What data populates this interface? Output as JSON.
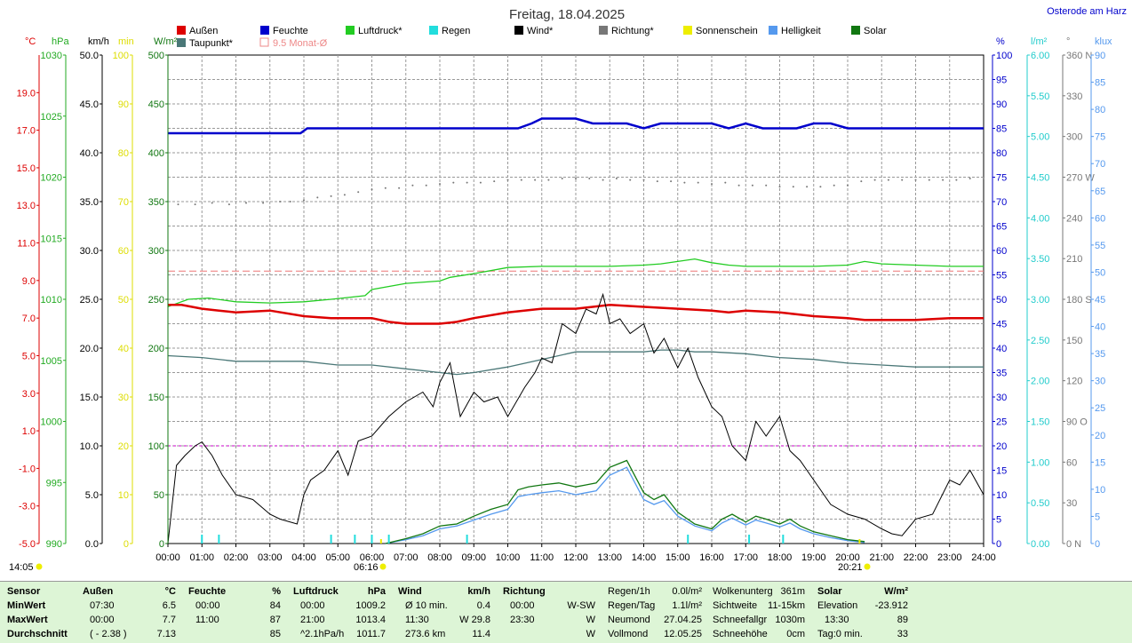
{
  "header": {
    "title": "Freitag, 18.04.2025",
    "location": "Osterode am Harz"
  },
  "legend": [
    {
      "label": "Außen",
      "color": "#dd0000"
    },
    {
      "label": "Feuchte",
      "color": "#0000cc"
    },
    {
      "label": "Luftdruck*",
      "color": "#22cc22"
    },
    {
      "label": "Regen",
      "color": "#22dddd"
    },
    {
      "label": "Wind*",
      "color": "#000000"
    },
    {
      "label": "Richtung*",
      "color": "#777777"
    },
    {
      "label": "Sonnenschein",
      "color": "#eeee00"
    },
    {
      "label": "Helligkeit",
      "color": "#5599ee"
    },
    {
      "label": "Solar",
      "color": "#117711"
    },
    {
      "label": "Taupunkt*",
      "color": "#4a7777"
    },
    {
      "label": "9.5 Monat-Ø",
      "color": "#ee8888",
      "hollow": true
    }
  ],
  "chart_data": {
    "type": "line",
    "x_ticks": [
      "00:00",
      "01:00",
      "02:00",
      "03:00",
      "04:00",
      "05:00",
      "06:00",
      "07:00",
      "08:00",
      "09:00",
      "10:00",
      "11:00",
      "12:00",
      "13:00",
      "14:00",
      "15:00",
      "16:00",
      "17:00",
      "18:00",
      "19:00",
      "20:00",
      "21:00",
      "22:00",
      "23:00",
      "24:00"
    ],
    "xlim": [
      0,
      24
    ],
    "axes_left": [
      {
        "unit": "°C",
        "color": "#dd0000",
        "min": -5,
        "max": 21,
        "ticks": [
          "-5.0",
          "-3.0",
          "-1.0",
          "1.0",
          "3.0",
          "5.0",
          "7.0",
          "9.0",
          "11.0",
          "13.0",
          "15.0",
          "17.0",
          "19.0"
        ]
      },
      {
        "unit": "hPa",
        "color": "#22aa22",
        "min": 990,
        "max": 1030,
        "ticks": [
          "990",
          "995",
          "1000",
          "1005",
          "1010",
          "1015",
          "1020",
          "1025",
          "1030"
        ]
      },
      {
        "unit": "km/h",
        "color": "#000000",
        "min": 0,
        "max": 50,
        "ticks": [
          "0.0",
          "5.0",
          "10.0",
          "15.0",
          "20.0",
          "25.0",
          "30.0",
          "35.0",
          "40.0",
          "45.0",
          "50.0"
        ]
      },
      {
        "unit": "min",
        "color": "#dddd00",
        "min": 0,
        "max": 100,
        "ticks": [
          "0",
          "10",
          "20",
          "30",
          "40",
          "50",
          "60",
          "70",
          "80",
          "90",
          "100"
        ]
      },
      {
        "unit": "W/m²",
        "color": "#117711",
        "min": 0,
        "max": 500,
        "ticks": [
          "0",
          "50",
          "100",
          "150",
          "200",
          "250",
          "300",
          "350",
          "400",
          "450",
          "500"
        ]
      }
    ],
    "axes_right": [
      {
        "unit": "%",
        "color": "#0000cc",
        "min": 0,
        "max": 100,
        "ticks": [
          "0",
          "5",
          "10",
          "15",
          "20",
          "25",
          "30",
          "35",
          "40",
          "45",
          "50",
          "55",
          "60",
          "65",
          "70",
          "75",
          "80",
          "85",
          "90",
          "95",
          "100"
        ]
      },
      {
        "unit": "l/m²",
        "color": "#22cccc",
        "min": 0,
        "max": 6,
        "ticks": [
          "0.00",
          "0.50",
          "1.00",
          "1.50",
          "2.00",
          "2.50",
          "3.00",
          "3.50",
          "4.00",
          "4.50",
          "5.00",
          "5.50",
          "6.00"
        ]
      },
      {
        "unit": "°",
        "color": "#777777",
        "min": 0,
        "max": 360,
        "ticks": [
          "0 N",
          "30",
          "60",
          "90 O",
          "120",
          "150",
          "180 S",
          "210",
          "240",
          "270 W",
          "300",
          "330",
          "360 N"
        ]
      },
      {
        "unit": "klux",
        "color": "#5599ee",
        "min": 0,
        "max": 90,
        "ticks": [
          "0",
          "5",
          "10",
          "15",
          "20",
          "25",
          "30",
          "35",
          "40",
          "45",
          "50",
          "55",
          "60",
          "65",
          "70",
          "75",
          "80",
          "85",
          "90"
        ]
      }
    ],
    "series": [
      {
        "name": "Außen",
        "color": "#dd0000",
        "axis": "°C",
        "x": [
          0,
          0.4,
          1,
          1.5,
          2,
          3,
          4,
          4.8,
          6,
          6.5,
          7,
          8,
          8.5,
          9,
          10,
          11,
          12,
          12.5,
          13,
          14,
          15,
          16,
          16.5,
          17,
          18,
          18.5,
          19,
          20,
          20.5,
          21,
          22,
          23,
          24
        ],
        "y": [
          7.7,
          7.7,
          7.5,
          7.4,
          7.3,
          7.4,
          7.1,
          7.0,
          7.0,
          6.8,
          6.7,
          6.7,
          6.8,
          7.0,
          7.3,
          7.5,
          7.5,
          7.6,
          7.7,
          7.6,
          7.5,
          7.4,
          7.3,
          7.4,
          7.3,
          7.2,
          7.1,
          7.0,
          6.9,
          6.9,
          6.9,
          7.0,
          7.0
        ]
      },
      {
        "name": "Feuchte",
        "color": "#0000cc",
        "axis": "%",
        "x": [
          0,
          3.9,
          4.1,
          10.3,
          10.7,
          11,
          12,
          12.5,
          13.5,
          14,
          14.5,
          15,
          15.5,
          16,
          16.5,
          17,
          17.5,
          18,
          18.5,
          19,
          19.5,
          20,
          24
        ],
        "y": [
          84,
          84,
          85,
          85,
          86,
          87,
          87,
          86,
          86,
          85,
          86,
          86,
          86,
          86,
          85,
          86,
          85,
          85,
          85,
          86,
          86,
          85,
          85
        ]
      },
      {
        "name": "Luftdruck*",
        "color": "#22cc22",
        "axis": "hPa",
        "x": [
          0,
          0.6,
          1.2,
          2,
          3,
          4,
          4.8,
          5.8,
          6,
          7,
          8,
          8.3,
          9,
          10,
          11,
          12,
          13,
          14,
          14.5,
          15,
          15.5,
          16,
          16.5,
          17,
          18,
          19,
          20,
          20.5,
          21,
          22,
          23,
          24
        ],
        "y": [
          1009.4,
          1010.0,
          1010.1,
          1009.8,
          1009.7,
          1009.8,
          1010.0,
          1010.3,
          1010.8,
          1011.3,
          1011.5,
          1011.8,
          1012.1,
          1012.6,
          1012.7,
          1012.7,
          1012.7,
          1012.8,
          1012.9,
          1013.1,
          1013.3,
          1013.0,
          1012.8,
          1012.7,
          1012.7,
          1012.7,
          1012.8,
          1013.1,
          1012.9,
          1012.8,
          1012.7,
          1012.7
        ]
      },
      {
        "name": "Wind*",
        "color": "#000000",
        "axis": "km/h",
        "x": [
          0,
          0.25,
          0.5,
          0.8,
          1,
          1.3,
          1.6,
          2,
          2.5,
          3,
          3.3,
          3.8,
          4,
          4.2,
          4.6,
          5,
          5.3,
          5.6,
          6,
          6.5,
          7,
          7.5,
          7.8,
          8,
          8.3,
          8.6,
          9,
          9.3,
          9.7,
          10,
          10.5,
          10.8,
          11,
          11.3,
          11.6,
          12,
          12.3,
          12.6,
          12.8,
          13,
          13.3,
          13.6,
          14,
          14.3,
          14.6,
          15,
          15.3,
          15.6,
          16,
          16.3,
          16.6,
          17,
          17.3,
          17.6,
          18,
          18.3,
          18.6,
          19,
          19.5,
          20,
          20.5,
          21,
          21.3,
          21.6,
          22,
          22.5,
          23,
          23.3,
          23.6,
          24
        ],
        "y": [
          0,
          8,
          9,
          10,
          10.4,
          9,
          7,
          5,
          4.5,
          3,
          2.5,
          2,
          5,
          6.5,
          7.5,
          9.5,
          7,
          10.5,
          11,
          13,
          14.5,
          15.5,
          14,
          16.5,
          18.5,
          13,
          15.5,
          14.5,
          15,
          13,
          16,
          17.5,
          19,
          18.5,
          22.5,
          21.5,
          24,
          23.5,
          25.5,
          22.5,
          23,
          21.5,
          22.5,
          19.5,
          21,
          18,
          20,
          17,
          14,
          13,
          10,
          8.5,
          12.5,
          11,
          13,
          9.5,
          8.5,
          6.5,
          4,
          3,
          2.5,
          1.5,
          1,
          0.8,
          2.5,
          3,
          6.5,
          6,
          7.5,
          5
        ]
      },
      {
        "name": "Taupunkt*",
        "color": "#4a7777",
        "axis": "°C",
        "x": [
          0,
          1,
          2,
          3,
          4,
          5,
          6,
          7,
          8,
          8.5,
          9,
          10,
          11,
          12,
          13,
          14,
          14.5,
          15,
          15.5,
          16,
          17,
          18,
          19,
          20,
          21,
          22,
          23,
          24
        ],
        "y": [
          5.0,
          4.9,
          4.7,
          4.7,
          4.7,
          4.5,
          4.5,
          4.3,
          4.1,
          4.0,
          4.1,
          4.4,
          4.8,
          5.2,
          5.2,
          5.2,
          5.3,
          5.3,
          5.2,
          5.2,
          5.1,
          4.9,
          4.8,
          4.6,
          4.5,
          4.4,
          4.4,
          4.4
        ]
      },
      {
        "name": "Solar",
        "color": "#117711",
        "axis": "W/m²",
        "x": [
          6.4,
          7,
          7.5,
          8,
          8.5,
          9,
          9.5,
          10,
          10.3,
          10.6,
          11,
          11.5,
          12,
          12.3,
          12.6,
          13,
          13.5,
          14,
          14.3,
          14.6,
          15,
          15.5,
          16,
          16.3,
          16.6,
          17,
          17.3,
          17.6,
          18,
          18.3,
          18.6,
          19,
          19.5,
          20,
          20.5
        ],
        "y": [
          0,
          5,
          10,
          18,
          20,
          28,
          35,
          40,
          55,
          58,
          60,
          62,
          58,
          60,
          62,
          78,
          85,
          52,
          45,
          50,
          32,
          20,
          15,
          25,
          30,
          22,
          28,
          25,
          20,
          25,
          18,
          12,
          8,
          4,
          2
        ]
      },
      {
        "name": "Helligkeit",
        "color": "#5599ee",
        "axis": "W/m²",
        "x": [
          6.4,
          7,
          7.5,
          8,
          8.5,
          9,
          9.5,
          10,
          10.3,
          10.6,
          11,
          11.5,
          12,
          12.3,
          12.6,
          13,
          13.5,
          14,
          14.3,
          14.6,
          15,
          15.5,
          16,
          16.3,
          16.6,
          17,
          17.3,
          17.6,
          18,
          18.3,
          18.6,
          19,
          19.5,
          20,
          20.5
        ],
        "y": [
          0,
          4,
          8,
          15,
          18,
          24,
          30,
          35,
          48,
          50,
          52,
          54,
          50,
          52,
          54,
          70,
          78,
          45,
          40,
          44,
          28,
          18,
          13,
          21,
          26,
          19,
          24,
          21,
          17,
          21,
          15,
          10,
          6,
          3,
          1
        ]
      },
      {
        "name": "Richtung*",
        "color": "#777777",
        "axis": "°",
        "x": [
          0.3,
          0.8,
          1.3,
          1.8,
          2.3,
          2.8,
          3.3,
          3.6,
          4,
          4.4,
          4.8,
          5.2,
          5.6,
          6,
          6.4,
          6.8,
          7.2,
          7.6,
          8,
          8.4,
          8.8,
          9.2,
          9.6,
          10,
          10.4,
          10.8,
          11.2,
          11.6,
          12,
          12.4,
          12.8,
          13.2,
          13.6,
          14,
          14.4,
          14.8,
          15.2,
          15.6,
          16,
          16.4,
          16.8,
          17.2,
          17.6,
          18,
          18.4,
          18.8,
          19.2,
          19.6,
          20,
          20.4,
          20.8,
          21.2,
          21.6,
          22,
          22.4,
          22.8,
          23.2,
          23.6,
          24
        ],
        "y": [
          250,
          250,
          251,
          250,
          251,
          251,
          252,
          252,
          253,
          255,
          256,
          257,
          259,
          261,
          262,
          262,
          264,
          264,
          265,
          266,
          266,
          266,
          267,
          268,
          268,
          268,
          268,
          269,
          269,
          269,
          268,
          269,
          268,
          268,
          267,
          267,
          266,
          266,
          265,
          266,
          264,
          264,
          264,
          263,
          263,
          263,
          263,
          264,
          264,
          267,
          268,
          268,
          268,
          268,
          268,
          268,
          268,
          269,
          269
        ]
      }
    ],
    "rain_ticks": [
      1.0,
      1.5,
      4.8,
      5.5,
      6.0,
      6.5,
      8.8,
      15.3,
      17.1,
      18.1
    ],
    "sun_marks": [
      6.27,
      20.35
    ],
    "threshold_lines": [
      {
        "label": "9.5 Monat-Ø",
        "axis": "°C",
        "value": 9.5,
        "color": "#ee7777"
      },
      {
        "axis": "km/h",
        "value": 10,
        "color": "#cc00cc"
      }
    ],
    "time_labels": {
      "left": "14:05",
      "sunrise": "06:16",
      "sunset": "20:21"
    }
  },
  "stats": {
    "cols": [
      {
        "title": "Sensor",
        "unit": "",
        "rows": [
          [
            "MinWert",
            ""
          ],
          [
            "MaxWert",
            ""
          ],
          [
            "Durchschnitt",
            ""
          ]
        ]
      },
      {
        "title": "Außen",
        "unit": "°C",
        "rows": [
          [
            "07:30",
            "6.5"
          ],
          [
            "00:00",
            "7.7"
          ],
          [
            "( - 2.38 )",
            "7.13"
          ]
        ]
      },
      {
        "title": "Feuchte",
        "unit": "%",
        "rows": [
          [
            "00:00",
            "84"
          ],
          [
            "11:00",
            "87"
          ],
          [
            "",
            "85"
          ]
        ]
      },
      {
        "title": "Luftdruck",
        "unit": "hPa",
        "rows": [
          [
            "00:00",
            "1009.2"
          ],
          [
            "21:00",
            "1013.4"
          ],
          [
            "^2.1hPa/h",
            "1011.7"
          ]
        ]
      },
      {
        "title": "Wind",
        "unit": "km/h",
        "rows": [
          [
            "Ø 10 min.",
            "0.4"
          ],
          [
            "11:30",
            "W 29.8"
          ],
          [
            "273.6 km",
            "11.4"
          ]
        ]
      },
      {
        "title": "Richtung",
        "unit": "",
        "rows": [
          [
            "00:00",
            "W-SW"
          ],
          [
            "23:30",
            "W"
          ],
          [
            "",
            "W"
          ]
        ]
      }
    ],
    "rain": [
      [
        "Regen/1h",
        "0.0l/m²"
      ],
      [
        "Regen/Tag",
        "1.1l/m²"
      ],
      [
        "Neumond",
        "27.04.25"
      ],
      [
        "Vollmond",
        "12.05.25"
      ]
    ],
    "clouds": [
      [
        "Wolkenunterg",
        "361m"
      ],
      [
        "Sichtweite",
        "11-15km"
      ],
      [
        "Schneefallgr",
        "1030m"
      ],
      [
        "Schneehöhe",
        "0cm"
      ]
    ],
    "solar": {
      "title": "Solar",
      "unit": "W/m²",
      "rows": [
        [
          "Elevation",
          "-23.912"
        ],
        [
          "13:30",
          "89"
        ],
        [
          "Tag:0 min.",
          "33"
        ]
      ]
    }
  }
}
